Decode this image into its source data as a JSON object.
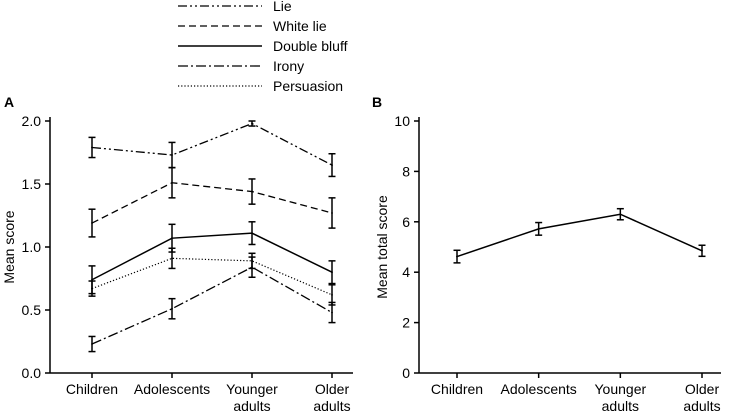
{
  "chart_data": [
    {
      "panel": "A",
      "type": "line",
      "categories": [
        "Children",
        "Adolescents",
        "Younger adults",
        "Older adults"
      ],
      "category_lines": [
        [
          "Children"
        ],
        [
          "Adolescents"
        ],
        [
          "Younger",
          "adults"
        ],
        [
          "Older",
          "adults"
        ]
      ],
      "ylabel": "Mean score",
      "xlabel": "",
      "ylim": [
        0,
        2.0
      ],
      "yticks": [
        "0.0",
        "0.5",
        "1.0",
        "1.5",
        "2.0"
      ],
      "legend_position": "top",
      "series": [
        {
          "name": "Lie",
          "style": "dash-dot-dot",
          "values": [
            1.79,
            1.73,
            1.98,
            1.65
          ],
          "errors": [
            0.08,
            0.1,
            0.02,
            0.09
          ]
        },
        {
          "name": "White lie",
          "style": "dashed",
          "values": [
            1.19,
            1.51,
            1.44,
            1.27
          ],
          "errors": [
            0.11,
            0.12,
            0.1,
            0.12
          ]
        },
        {
          "name": "Double bluff",
          "style": "solid",
          "values": [
            0.74,
            1.07,
            1.11,
            0.8
          ],
          "errors": [
            0.11,
            0.11,
            0.09,
            0.09
          ]
        },
        {
          "name": "Irony",
          "style": "dash-dot",
          "values": [
            0.23,
            0.51,
            0.84,
            0.48
          ],
          "errors": [
            0.06,
            0.08,
            0.08,
            0.08
          ]
        },
        {
          "name": "Persuasion",
          "style": "dotted",
          "values": [
            0.67,
            0.91,
            0.89,
            0.62
          ],
          "errors": [
            0.06,
            0.08,
            0.06,
            0.08
          ]
        }
      ]
    },
    {
      "panel": "B",
      "type": "line",
      "categories": [
        "Children",
        "Adolescents",
        "Younger adults",
        "Older adults"
      ],
      "category_lines": [
        [
          "Children"
        ],
        [
          "Adolescents"
        ],
        [
          "Younger",
          "adults"
        ],
        [
          "Older",
          "adults"
        ]
      ],
      "ylabel": "Mean total score",
      "xlabel": "",
      "ylim": [
        0,
        10
      ],
      "yticks": [
        "0",
        "2",
        "4",
        "6",
        "8",
        "10"
      ],
      "series": [
        {
          "name": "Mean total score",
          "style": "solid",
          "values": [
            4.62,
            5.72,
            6.3,
            4.85
          ],
          "errors": [
            0.25,
            0.25,
            0.22,
            0.22
          ]
        }
      ]
    }
  ]
}
